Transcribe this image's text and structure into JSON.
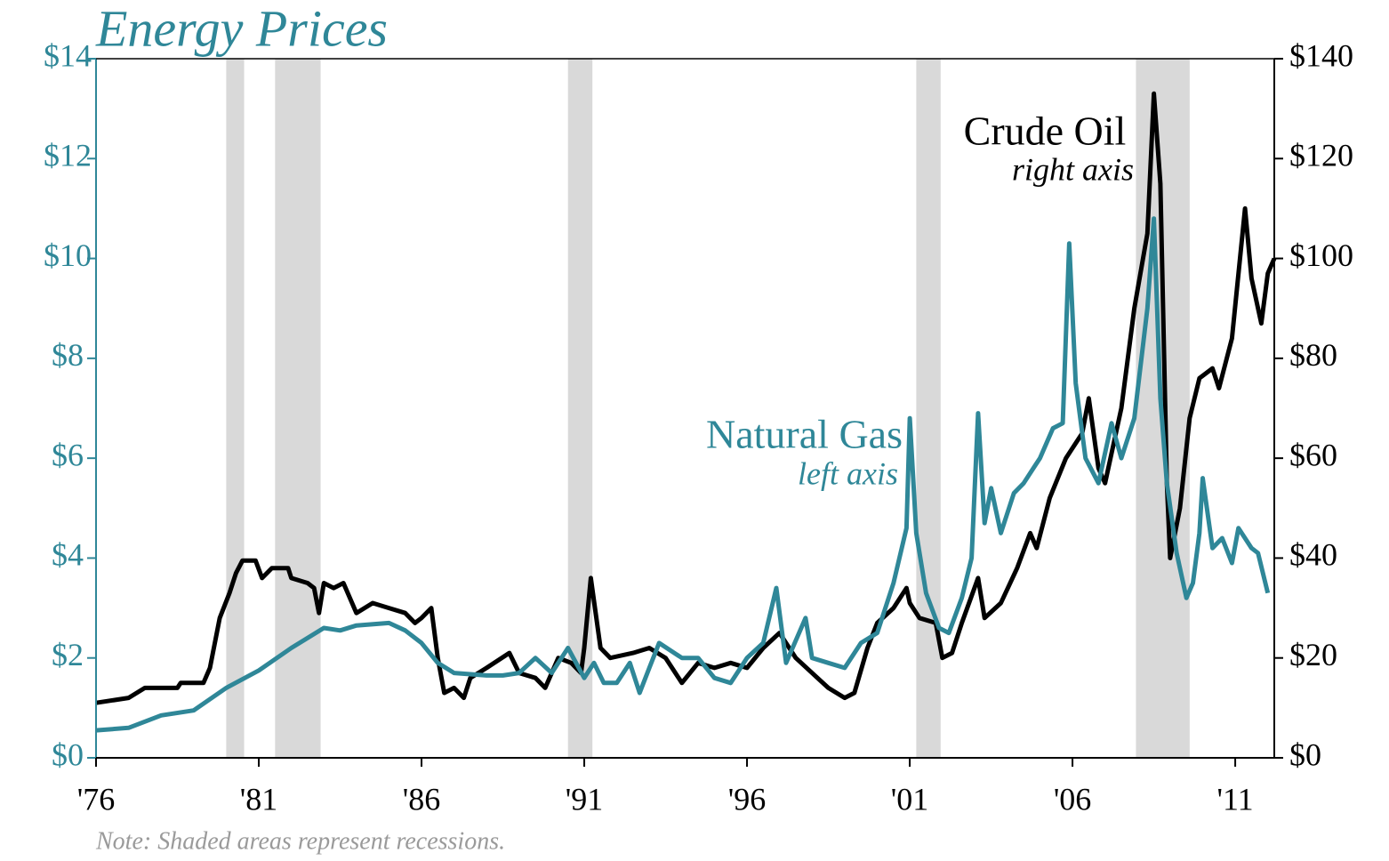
{
  "chart_data": {
    "type": "line",
    "title": "Energy Prices",
    "note": "Note: Shaded areas represent recessions.",
    "annotations": [
      {
        "text": "Crude Oil",
        "subtext": "right axis",
        "series": 0
      },
      {
        "text": "Natural Gas",
        "subtext": "left axis",
        "series": 1
      }
    ],
    "xlim": [
      1976,
      2012.2
    ],
    "xticks": [
      {
        "value": 1976,
        "label": "'76"
      },
      {
        "value": 1981,
        "label": "'81"
      },
      {
        "value": 1986,
        "label": "'86"
      },
      {
        "value": 1991,
        "label": "'91"
      },
      {
        "value": 1996,
        "label": "'96"
      },
      {
        "value": 2001,
        "label": "'01"
      },
      {
        "value": 2006,
        "label": "'06"
      },
      {
        "value": 2011,
        "label": "'11"
      }
    ],
    "ylim": [
      0,
      14
    ],
    "yticks": [
      {
        "value": 0,
        "label": "$0"
      },
      {
        "value": 2,
        "label": "$2"
      },
      {
        "value": 4,
        "label": "$4"
      },
      {
        "value": 6,
        "label": "$6"
      },
      {
        "value": 8,
        "label": "$8"
      },
      {
        "value": 10,
        "label": "$10"
      },
      {
        "value": 12,
        "label": "$12"
      },
      {
        "value": 14,
        "label": "$14"
      }
    ],
    "y2lim": [
      0,
      140
    ],
    "y2ticks": [
      {
        "value": 0,
        "label": "$0"
      },
      {
        "value": 20,
        "label": "$20"
      },
      {
        "value": 40,
        "label": "$40"
      },
      {
        "value": 60,
        "label": "$60"
      },
      {
        "value": 80,
        "label": "$80"
      },
      {
        "value": 100,
        "label": "$100"
      },
      {
        "value": 120,
        "label": "$120"
      },
      {
        "value": 140,
        "label": "$140"
      }
    ],
    "recession_color": "#d9d9d9",
    "recessions": [
      [
        1980.0,
        1980.55
      ],
      [
        1981.5,
        1982.9
      ],
      [
        1990.5,
        1991.25
      ],
      [
        2001.2,
        2001.95
      ],
      [
        2007.95,
        2009.6
      ]
    ],
    "series": [
      {
        "name": "Crude Oil",
        "color": "#000000",
        "axis": "y2",
        "x": [
          1976.0,
          1977.0,
          1977.5,
          1978.5,
          1978.6,
          1979.3,
          1979.5,
          1979.8,
          1980.1,
          1980.3,
          1980.5,
          1980.9,
          1981.1,
          1981.4,
          1981.9,
          1982.0,
          1982.5,
          1982.7,
          1982.85,
          1983.0,
          1983.3,
          1983.6,
          1984.0,
          1984.5,
          1985.0,
          1985.5,
          1985.8,
          1986.0,
          1986.3,
          1986.5,
          1986.7,
          1987.0,
          1987.3,
          1987.5,
          1988.0,
          1988.7,
          1989.0,
          1989.5,
          1989.8,
          1990.2,
          1990.6,
          1990.9,
          1991.0,
          1991.2,
          1991.5,
          1991.8,
          1992.5,
          1993.0,
          1993.5,
          1994.0,
          1994.5,
          1995.0,
          1995.5,
          1996.0,
          1996.5,
          1997.0,
          1997.5,
          1998.0,
          1998.5,
          1999.0,
          1999.3,
          1999.7,
          2000.0,
          2000.5,
          2000.9,
          2001.0,
          2001.3,
          2001.8,
          2002.0,
          2002.3,
          2002.6,
          2003.1,
          2003.3,
          2003.8,
          2004.3,
          2004.7,
          2004.9,
          2005.3,
          2005.8,
          2006.3,
          2006.5,
          2006.8,
          2007.0,
          2007.5,
          2007.9,
          2008.3,
          2008.5,
          2008.7,
          2008.9,
          2009.0,
          2009.3,
          2009.6,
          2009.9,
          2010.3,
          2010.5,
          2010.9,
          2011.3,
          2011.5,
          2011.8,
          2012.0,
          2012.2
        ],
        "values": [
          11,
          12,
          14,
          14,
          15,
          15,
          18,
          28,
          33,
          37,
          39.5,
          39.5,
          36,
          38,
          38,
          36,
          35,
          34,
          29,
          35,
          34,
          35,
          29,
          31,
          30,
          29,
          27,
          28,
          30,
          20,
          13,
          14,
          12,
          16,
          18,
          21,
          17,
          16,
          14,
          20,
          19,
          17,
          22,
          36,
          22,
          20,
          21,
          22,
          20,
          15,
          19,
          18,
          19,
          18,
          22,
          25,
          20,
          17,
          14,
          12,
          13,
          22,
          27,
          30,
          34,
          31,
          28,
          27,
          20,
          21,
          27,
          36,
          28,
          31,
          38,
          45,
          42,
          52,
          60,
          65,
          72,
          58,
          55,
          70,
          90,
          105,
          133,
          115,
          55,
          40,
          50,
          68,
          76,
          78,
          74,
          84,
          110,
          96,
          87,
          97,
          100
        ]
      },
      {
        "name": "Natural Gas",
        "color": "#2f8798",
        "axis": "y",
        "x": [
          1976.0,
          1977.0,
          1978.0,
          1979.0,
          1980.0,
          1981.0,
          1982.0,
          1983.0,
          1983.5,
          1984.0,
          1985.0,
          1985.5,
          1986.0,
          1986.5,
          1987.0,
          1988.0,
          1988.5,
          1989.0,
          1989.5,
          1990.0,
          1990.5,
          1991.0,
          1991.3,
          1991.6,
          1992.0,
          1992.4,
          1992.7,
          1993.0,
          1993.3,
          1994.0,
          1994.5,
          1995.0,
          1995.5,
          1996.0,
          1996.5,
          1996.9,
          1997.2,
          1997.8,
          1998.0,
          1998.5,
          1999.0,
          1999.5,
          2000.0,
          2000.5,
          2000.9,
          2001.0,
          2001.2,
          2001.5,
          2001.9,
          2002.2,
          2002.6,
          2002.9,
          2003.1,
          2003.3,
          2003.5,
          2003.8,
          2004.2,
          2004.5,
          2004.8,
          2005.0,
          2005.4,
          2005.7,
          2005.9,
          2006.1,
          2006.4,
          2006.8,
          2007.2,
          2007.5,
          2007.9,
          2008.3,
          2008.5,
          2008.7,
          2008.9,
          2009.2,
          2009.5,
          2009.7,
          2009.9,
          2010.0,
          2010.3,
          2010.6,
          2010.9,
          2011.1,
          2011.5,
          2011.7,
          2012.0
        ],
        "values": [
          0.55,
          0.6,
          0.85,
          0.95,
          1.4,
          1.75,
          2.2,
          2.6,
          2.55,
          2.65,
          2.7,
          2.55,
          2.3,
          1.9,
          1.7,
          1.65,
          1.65,
          1.7,
          2.0,
          1.7,
          2.2,
          1.6,
          1.9,
          1.5,
          1.5,
          1.9,
          1.3,
          1.8,
          2.3,
          2.0,
          2.0,
          1.6,
          1.5,
          2.0,
          2.3,
          3.4,
          1.9,
          2.8,
          2.0,
          1.9,
          1.8,
          2.3,
          2.5,
          3.5,
          4.6,
          6.8,
          4.5,
          3.3,
          2.6,
          2.5,
          3.2,
          4.0,
          6.9,
          4.7,
          5.4,
          4.5,
          5.3,
          5.5,
          5.8,
          6.0,
          6.6,
          6.7,
          10.3,
          7.5,
          6.0,
          5.5,
          6.7,
          6.0,
          6.8,
          9.0,
          10.8,
          7.2,
          5.5,
          4.1,
          3.2,
          3.5,
          4.5,
          5.6,
          4.2,
          4.4,
          3.9,
          4.6,
          4.2,
          4.1,
          3.3
        ]
      }
    ]
  }
}
